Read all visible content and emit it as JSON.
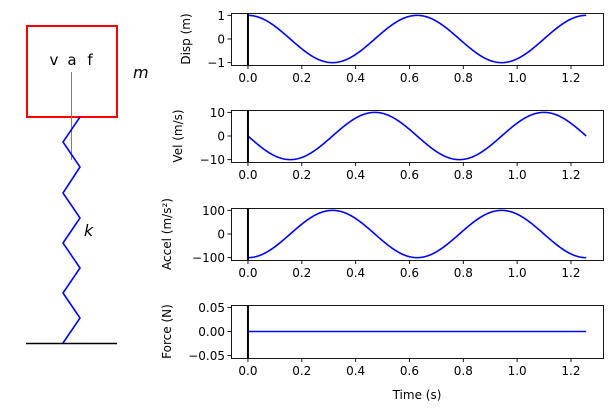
{
  "diagram": {
    "labels": [
      "v",
      "a",
      "f"
    ],
    "mass_label": "m",
    "spring_label": "k",
    "colors": {
      "mass_box": "#ff0000",
      "spring": "#0000ff",
      "arrow": "#808080",
      "ground": "#000000"
    }
  },
  "chart_data": [
    {
      "type": "line",
      "ylabel": "Disp (m)",
      "xlim": [
        -0.063,
        1.319
      ],
      "ylim": [
        -1.1,
        1.1
      ],
      "yticks": [
        "1",
        "0",
        "−1"
      ],
      "ytick_values": [
        1,
        0,
        -1
      ],
      "xticks": [
        "0.0",
        "0.2",
        "0.4",
        "0.6",
        "0.8",
        "1.0",
        "1.2"
      ],
      "function": "1*cos(10t)",
      "amplitude": 1,
      "omega": 10,
      "phase": "cos",
      "t_range": [
        0,
        1.2566
      ],
      "cursor_x": 0,
      "color": "#0000ff"
    },
    {
      "type": "line",
      "ylabel": "Vel (m/s)",
      "xlim": [
        -0.063,
        1.319
      ],
      "ylim": [
        -11,
        11
      ],
      "yticks": [
        "10",
        "0",
        "−10"
      ],
      "ytick_values": [
        10,
        0,
        -10
      ],
      "xticks": [
        "0.0",
        "0.2",
        "0.4",
        "0.6",
        "0.8",
        "1.0",
        "1.2"
      ],
      "function": "-10*sin(10t)",
      "amplitude": -10,
      "omega": 10,
      "phase": "sin",
      "t_range": [
        0,
        1.2566
      ],
      "cursor_x": 0,
      "color": "#0000ff"
    },
    {
      "type": "line",
      "ylabel": "Accel (m/s²)",
      "xlim": [
        -0.063,
        1.319
      ],
      "ylim": [
        -110,
        110
      ],
      "yticks": [
        "100",
        "0",
        "−100"
      ],
      "ytick_values": [
        100,
        0,
        -100
      ],
      "xticks": [
        "0.0",
        "0.2",
        "0.4",
        "0.6",
        "0.8",
        "1.0",
        "1.2"
      ],
      "function": "-100*cos(10t)",
      "amplitude": -100,
      "omega": 10,
      "phase": "cos",
      "t_range": [
        0,
        1.2566
      ],
      "cursor_x": 0,
      "color": "#0000ff"
    },
    {
      "type": "line",
      "ylabel": "Force (N)",
      "xlabel": "Time (s)",
      "xlim": [
        -0.063,
        1.319
      ],
      "ylim": [
        -0.055,
        0.055
      ],
      "yticks": [
        "0.05",
        "0.00",
        "−0.05"
      ],
      "ytick_values": [
        0.05,
        0,
        -0.05
      ],
      "xticks": [
        "0.0",
        "0.2",
        "0.4",
        "0.6",
        "0.8",
        "1.0",
        "1.2"
      ],
      "function": "0",
      "amplitude": 0,
      "omega": 10,
      "phase": "cos",
      "t_range": [
        0,
        1.2566
      ],
      "cursor_x": 0,
      "color": "#0000ff"
    }
  ]
}
